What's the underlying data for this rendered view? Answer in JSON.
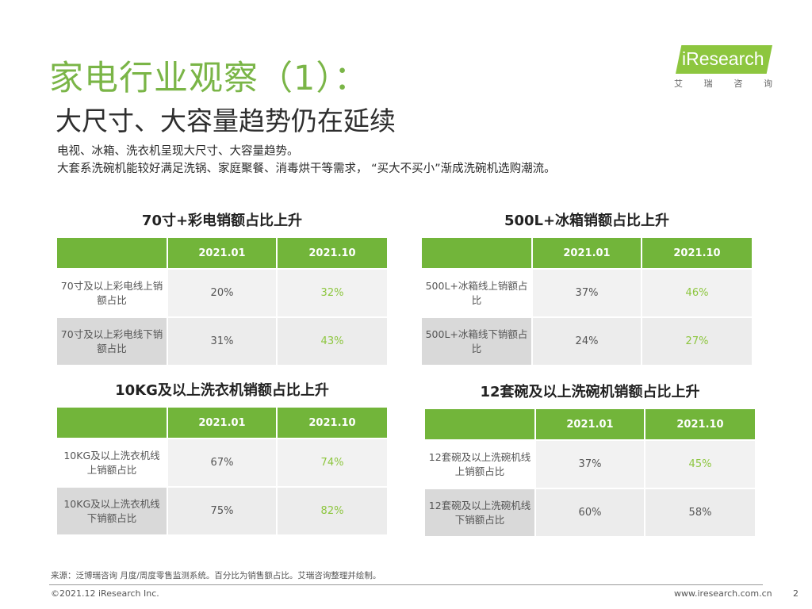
{
  "header": {
    "title": "家电行业观察（1）：",
    "subtitle": "大尺寸、大容量趋势仍在延续",
    "desc_line1": "电视、冰箱、洗衣机呈现大尺寸、大容量趋势。",
    "desc_line2": "大套系洗碗机能较好满足洗锅、家庭聚餐、消毒烘干等需求，  “买大不买小”渐成洗碗机选购潮流。"
  },
  "logo": {
    "text": "iResearch",
    "sub": [
      "艾",
      "瑞",
      "咨",
      "询"
    ]
  },
  "colors": {
    "accent": "#7ab547",
    "header_bg": "#72b53a",
    "highlight": "#8dc63f"
  },
  "tables": [
    {
      "title": "70寸+彩电销额占比上升",
      "columns": [
        "",
        "2021.01",
        "2021.10"
      ],
      "rows": [
        {
          "label": "70寸及以上彩电线上销额占比",
          "v1": "20%",
          "v2": "32%"
        },
        {
          "label": "70寸及以上彩电线下销额占比",
          "v1": "31%",
          "v2": "43%"
        }
      ]
    },
    {
      "title": "500L+冰箱销额占比上升",
      "columns": [
        "",
        "2021.01",
        "2021.10"
      ],
      "rows": [
        {
          "label": "500L+冰箱线上销额占比",
          "v1": "37%",
          "v2": "46%"
        },
        {
          "label": "500L+冰箱线下销额占比",
          "v1": "24%",
          "v2": "27%"
        }
      ]
    },
    {
      "title": "10KG及以上洗衣机销额占比上升",
      "columns": [
        "",
        "2021.01",
        "2021.10"
      ],
      "rows": [
        {
          "label": "10KG及以上洗衣机线上销额占比",
          "v1": "67%",
          "v2": "74%"
        },
        {
          "label": "10KG及以上洗衣机线下销额占比",
          "v1": "75%",
          "v2": "82%"
        }
      ]
    },
    {
      "title": "12套碗及以上洗碗机销额占比上升",
      "columns": [
        "",
        "2021.01",
        "2021.10"
      ],
      "rows": [
        {
          "label": "12套碗及以上洗碗机线上销额占比",
          "v1": "37%",
          "v2": "45%"
        },
        {
          "label": "12套碗及以上洗碗机线下销额占比",
          "v1": "60%",
          "v2": "58%"
        }
      ]
    }
  ],
  "footer": {
    "source": "来源：泛博瑞咨询 月度/周度零售监测系统。百分比为销售额占比。艾瑞咨询整理并绘制。",
    "copyright": "©2021.12 iResearch Inc.",
    "website": "www.iresearch.com.cn",
    "page": "2"
  }
}
